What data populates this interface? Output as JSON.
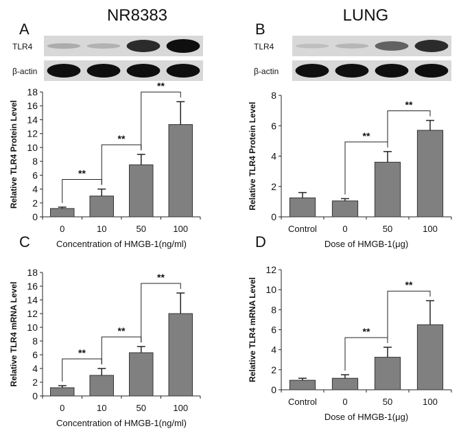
{
  "figure": {
    "column_titles": [
      "NR8383",
      "LUNG"
    ],
    "band_labels": {
      "target": "TLR4",
      "control": "β-actin"
    }
  },
  "chart_data": [
    {
      "type": "bar",
      "panel": "A",
      "categories": [
        "0",
        "10",
        "50",
        "100"
      ],
      "values": [
        1.2,
        3.0,
        7.5,
        13.3
      ],
      "errors": [
        0.2,
        1.0,
        1.5,
        3.3
      ],
      "xlabel": "Concentration of HMGB-1(ng/ml)",
      "ylabel": "Relative TLR4 Protein Level",
      "ylim": [
        0,
        18
      ],
      "yticks": [
        0,
        2,
        4,
        6,
        8,
        10,
        12,
        14,
        16,
        18
      ],
      "significance": [
        {
          "from": 0,
          "to": 1,
          "label": "**"
        },
        {
          "from": 1,
          "to": 2,
          "label": "**"
        },
        {
          "from": 2,
          "to": 3,
          "label": "**"
        }
      ],
      "blot": {
        "target_intensity": [
          0.15,
          0.12,
          0.85,
          1.0
        ],
        "control_intensity": [
          1,
          1,
          1,
          1
        ]
      },
      "bar_color": "#808080"
    },
    {
      "type": "bar",
      "panel": "B",
      "categories": [
        "Control",
        "0",
        "50",
        "100"
      ],
      "values": [
        1.25,
        1.05,
        3.6,
        5.7
      ],
      "errors": [
        0.35,
        0.15,
        0.7,
        0.65
      ],
      "xlabel": "Dose of HMGB-1(μg)",
      "ylabel": "Relative TLR4 Protein Level",
      "ylim": [
        0,
        8
      ],
      "yticks": [
        0,
        2,
        4,
        6,
        8
      ],
      "significance": [
        {
          "from": 1,
          "to": 2,
          "label": "**"
        },
        {
          "from": 2,
          "to": 3,
          "label": "**"
        }
      ],
      "blot": {
        "target_intensity": [
          0.05,
          0.1,
          0.55,
          0.85
        ],
        "control_intensity": [
          1,
          1,
          1,
          1
        ]
      },
      "bar_color": "#808080"
    },
    {
      "type": "bar",
      "panel": "C",
      "categories": [
        "0",
        "10",
        "50",
        "100"
      ],
      "values": [
        1.2,
        3.0,
        6.3,
        12.0
      ],
      "errors": [
        0.3,
        1.0,
        0.9,
        3.0
      ],
      "xlabel": "Concentration of HMGB-1(ng/ml)",
      "ylabel": "Relative TLR4 mRNA Level",
      "ylim": [
        0,
        18
      ],
      "yticks": [
        0,
        2,
        4,
        6,
        8,
        10,
        12,
        14,
        16,
        18
      ],
      "significance": [
        {
          "from": 0,
          "to": 1,
          "label": "**"
        },
        {
          "from": 1,
          "to": 2,
          "label": "**"
        },
        {
          "from": 2,
          "to": 3,
          "label": "**"
        }
      ],
      "bar_color": "#808080"
    },
    {
      "type": "bar",
      "panel": "D",
      "categories": [
        "Control",
        "0",
        "50",
        "100"
      ],
      "values": [
        0.95,
        1.15,
        3.25,
        6.5
      ],
      "errors": [
        0.2,
        0.35,
        1.0,
        2.4
      ],
      "xlabel": "Dose of HMGB-1(μg)",
      "ylabel": "Relative TLR4 mRNA Level",
      "ylim": [
        0,
        12
      ],
      "yticks": [
        0,
        2,
        4,
        6,
        8,
        10,
        12
      ],
      "significance": [
        {
          "from": 1,
          "to": 2,
          "label": "**"
        },
        {
          "from": 2,
          "to": 3,
          "label": "**"
        }
      ],
      "bar_color": "#808080"
    }
  ]
}
